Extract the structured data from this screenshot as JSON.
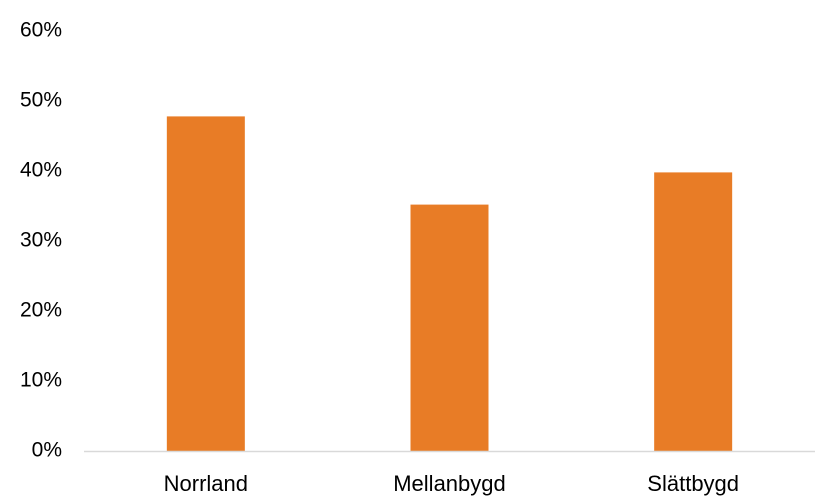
{
  "chart_data": {
    "type": "bar",
    "title": "",
    "xlabel": "",
    "ylabel": "",
    "categories": [
      "Norrland",
      "Mellanbygd",
      "Slättbygd"
    ],
    "values": [
      47.8,
      35.2,
      39.8
    ],
    "value_unit": "percent",
    "ylim": [
      0,
      60
    ],
    "y_ticks": [
      0,
      10,
      20,
      30,
      40,
      50,
      60
    ],
    "y_tick_labels": [
      "0%",
      "10%",
      "20%",
      "30%",
      "40%",
      "50%",
      "60%"
    ],
    "grid": false,
    "legend": "none",
    "colors": {
      "bar": "#E87C26",
      "axis": "#D9D9D9"
    }
  }
}
